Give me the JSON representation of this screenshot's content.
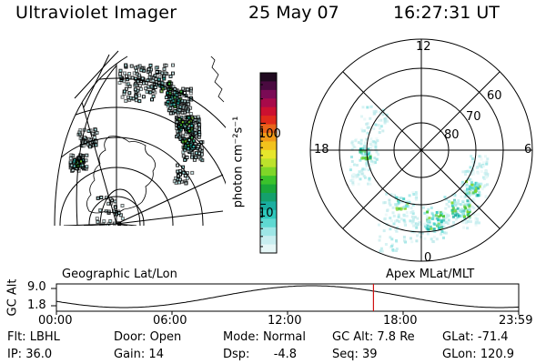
{
  "header": {
    "instrument": "Ultraviolet Imager",
    "date": "25 May 07",
    "time": "16:27:31 UT"
  },
  "colorbar": {
    "unit_label": "photon cm⁻²s⁻¹",
    "tick_labels": [
      "100",
      "10"
    ],
    "tick_values": [
      100,
      10
    ],
    "colors": [
      "#e6f7f7",
      "#c8eef0",
      "#9ee6e6",
      "#5fd9d2",
      "#2ec9bd",
      "#1aaea0",
      "#14a06c",
      "#1aa83a",
      "#3bc22b",
      "#7fd628",
      "#bde22c",
      "#e6e62c",
      "#f2c21c",
      "#f09a18",
      "#e8641a",
      "#e02a1a",
      "#cc1030",
      "#a80a4a",
      "#7a0a55",
      "#4a0a40",
      "#200a20"
    ]
  },
  "left_panel": {
    "label": "Geographic Lat/Lon"
  },
  "right_panel": {
    "label": "Apex MLat/MLT",
    "mlt_labels": {
      "top": "12",
      "left": "18",
      "right": "6",
      "bottom": "0"
    },
    "lat_labels": [
      "60",
      "70",
      "80"
    ]
  },
  "timeline": {
    "ylabel": "GC Alt",
    "ytick_labels": [
      "9.0",
      "1.8"
    ],
    "xtick_labels": [
      "00:00",
      "06:00",
      "12:00",
      "18:00",
      "23:59"
    ],
    "current_time_hours": 16.46,
    "marker_color": "#d01010"
  },
  "status": {
    "filter_label": "Flt:",
    "filter_value": "LBHL",
    "ip_label": "IP:",
    "ip_value": "36.0",
    "door_label": "Door:",
    "door_value": "Open",
    "gain_label": "Gain:",
    "gain_value": "14",
    "mode_label": "Mode:",
    "mode_value": "Normal",
    "dsp_label": "Dsp:",
    "dsp_value": "-4.8",
    "gcalt_label": "GC Alt:",
    "gcalt_value": "7.8 Re",
    "seq_label": "Seq:",
    "seq_value": "39",
    "glat_label": "GLat:",
    "glat_value": "-71.4",
    "glon_label": "GLon:",
    "glon_value": "120.9"
  }
}
